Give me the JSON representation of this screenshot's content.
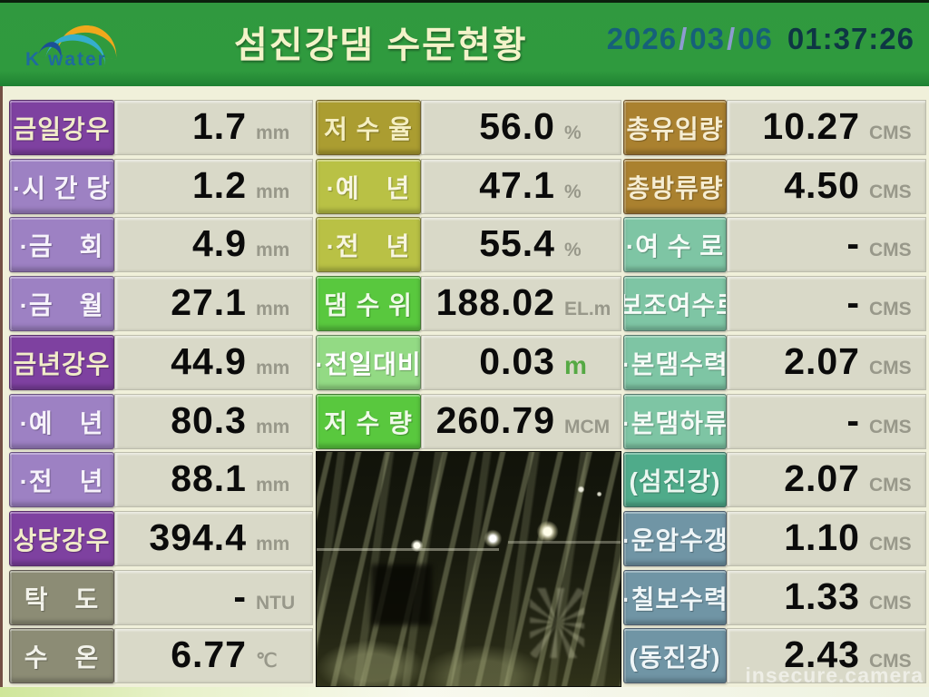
{
  "header": {
    "logo_text": "K water",
    "title": "섬진강댐 수문현황",
    "datetime": {
      "year": "2026",
      "sep": "/",
      "month": "03",
      "day": "06",
      "time": "01:37:26"
    }
  },
  "watermark": "insecure.camera",
  "grid": {
    "columns": [
      {
        "name": "rainfall",
        "rows": [
          {
            "label": "금일강우",
            "value": "1.7",
            "unit": "mm",
            "style": "purple-dark"
          },
          {
            "label": "·시 간 당",
            "value": "1.2",
            "unit": "mm",
            "style": "purple-light"
          },
          {
            "label": "·금　회",
            "value": "4.9",
            "unit": "mm",
            "style": "purple-light"
          },
          {
            "label": "·금　월",
            "value": "27.1",
            "unit": "mm",
            "style": "purple-light"
          },
          {
            "label": "금년강우",
            "value": "44.9",
            "unit": "mm",
            "style": "purple-dark"
          },
          {
            "label": "·예　년",
            "value": "80.3",
            "unit": "mm",
            "style": "purple-light"
          },
          {
            "label": "·전　년",
            "value": "88.1",
            "unit": "mm",
            "style": "purple-light"
          },
          {
            "label": "상당강우",
            "value": "394.4",
            "unit": "mm",
            "style": "purple-dark"
          },
          {
            "label": "탁　도",
            "value": "-",
            "unit": "NTU",
            "style": "olive"
          },
          {
            "label": "수　온",
            "value": "6.77",
            "unit": "℃",
            "style": "olive"
          }
        ]
      },
      {
        "name": "reservoir",
        "rows": [
          {
            "label": "저 수 율",
            "value": "56.0",
            "unit": "%",
            "style": "gold"
          },
          {
            "label": "·예　년",
            "value": "47.1",
            "unit": "%",
            "style": "yellowgreen"
          },
          {
            "label": "·전　년",
            "value": "55.4",
            "unit": "%",
            "style": "yellowgreen"
          },
          {
            "label": "댐 수 위",
            "value": "188.02",
            "unit": "EL.m",
            "style": "green"
          },
          {
            "label": "·전일대비",
            "value": "0.03",
            "unit": "m",
            "style": "green-light",
            "unit_style": "green"
          },
          {
            "label": "저 수 량",
            "value": "260.79",
            "unit": "MCM",
            "style": "green"
          }
        ]
      },
      {
        "name": "flow",
        "rows": [
          {
            "label": "총유입량",
            "value": "10.27",
            "unit": "CMS",
            "style": "brown"
          },
          {
            "label": "총방류량",
            "value": "4.50",
            "unit": "CMS",
            "style": "brown"
          },
          {
            "label": "·여 수 로",
            "value": "-",
            "unit": "CMS",
            "style": "mint"
          },
          {
            "label": "·보조여수로",
            "value": "-",
            "unit": "CMS",
            "style": "mint"
          },
          {
            "label": "·본댐수력",
            "value": "2.07",
            "unit": "CMS",
            "style": "mint"
          },
          {
            "label": "·본댐하류",
            "value": "-",
            "unit": "CMS",
            "style": "mint"
          },
          {
            "label": "(섬진강)",
            "value": "2.07",
            "unit": "CMS",
            "style": "teal"
          },
          {
            "label": "·운암수갱",
            "value": "1.10",
            "unit": "CMS",
            "style": "steel"
          },
          {
            "label": "·칠보수력",
            "value": "1.33",
            "unit": "CMS",
            "style": "steel"
          },
          {
            "label": "(동진강)",
            "value": "2.43",
            "unit": "CMS",
            "style": "steel"
          }
        ]
      }
    ]
  }
}
